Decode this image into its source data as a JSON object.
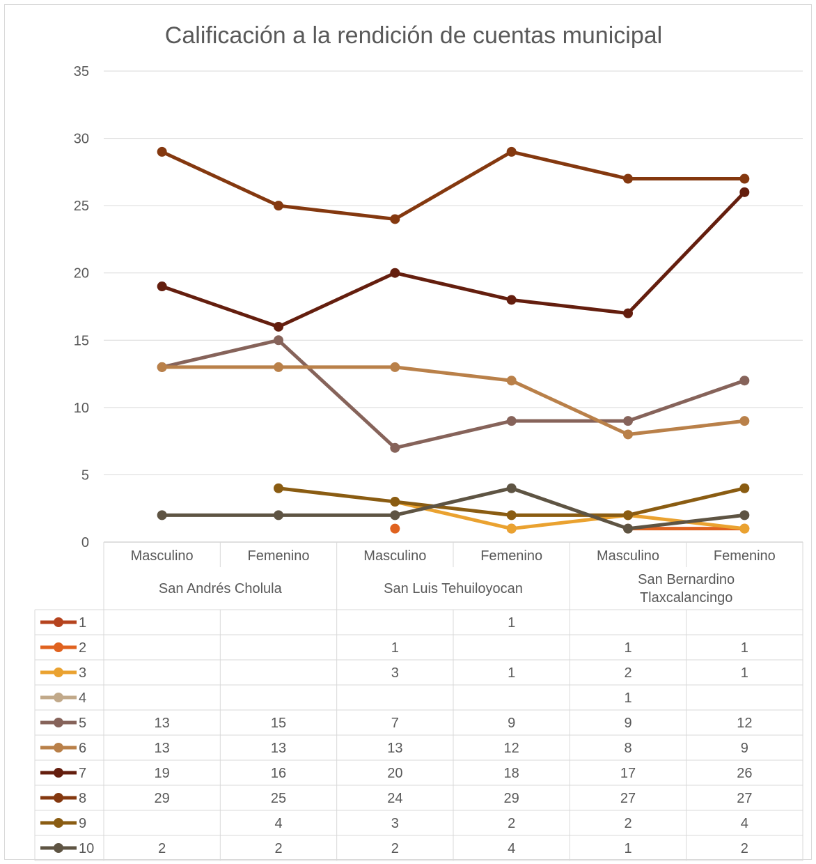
{
  "chart_data": {
    "type": "line",
    "title": "Calificación a la rendición de cuentas municipal",
    "ylim": [
      0,
      35
    ],
    "yticks": [
      0,
      5,
      10,
      15,
      20,
      25,
      30,
      35
    ],
    "grid": true,
    "legend": "data-table",
    "groups": [
      {
        "label_lines": [
          "San Andrés Cholula"
        ],
        "categories": [
          "Masculino",
          "Femenino"
        ]
      },
      {
        "label_lines": [
          "San Luis Tehuiloyocan"
        ],
        "categories": [
          "Masculino",
          "Femenino"
        ]
      },
      {
        "label_lines": [
          "San Bernardino",
          "Tlaxcalancingo"
        ],
        "categories": [
          "Masculino",
          "Femenino"
        ]
      }
    ],
    "series": [
      {
        "name": "1",
        "color": "#b5431e",
        "values": [
          null,
          null,
          null,
          1,
          null,
          null
        ]
      },
      {
        "name": "2",
        "color": "#e0621f",
        "values": [
          null,
          null,
          1,
          null,
          1,
          1
        ]
      },
      {
        "name": "3",
        "color": "#eaa230",
        "values": [
          null,
          null,
          3,
          1,
          2,
          1
        ]
      },
      {
        "name": "4",
        "color": "#c1a98a",
        "values": [
          null,
          null,
          null,
          null,
          1,
          null
        ]
      },
      {
        "name": "5",
        "color": "#86635a",
        "values": [
          13,
          15,
          7,
          9,
          9,
          12
        ]
      },
      {
        "name": "6",
        "color": "#b98049",
        "values": [
          13,
          13,
          13,
          12,
          8,
          9
        ]
      },
      {
        "name": "7",
        "color": "#641e0e",
        "values": [
          19,
          16,
          20,
          18,
          17,
          26
        ]
      },
      {
        "name": "8",
        "color": "#84380f",
        "values": [
          29,
          25,
          24,
          29,
          27,
          27
        ]
      },
      {
        "name": "9",
        "color": "#8a5c12",
        "values": [
          null,
          4,
          3,
          2,
          2,
          4
        ]
      },
      {
        "name": "10",
        "color": "#5e5443",
        "values": [
          2,
          2,
          2,
          4,
          1,
          2
        ]
      }
    ]
  }
}
